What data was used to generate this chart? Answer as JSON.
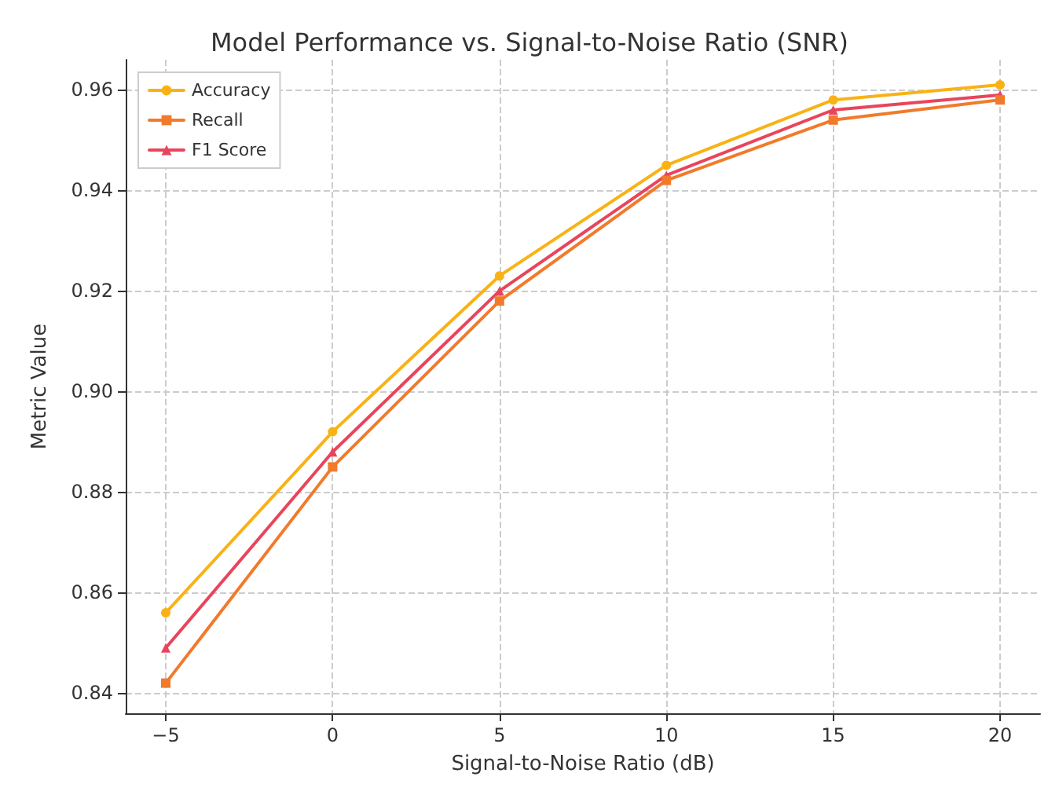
{
  "chart_data": {
    "type": "line",
    "title": "Model Performance vs. Signal-to-Noise Ratio (SNR)",
    "xlabel": "Signal-to-Noise Ratio (dB)",
    "ylabel": "Metric Value",
    "x": [
      -5,
      0,
      5,
      10,
      15,
      20
    ],
    "xlim": [
      -6.2,
      21.2
    ],
    "xticks": [
      {
        "value": -5,
        "label": "−5"
      },
      0,
      5,
      10,
      15,
      20
    ],
    "ylim": [
      0.836,
      0.966
    ],
    "yticks": [
      {
        "value": 0.84,
        "label": "0.84"
      },
      {
        "value": 0.86,
        "label": "0.86"
      },
      {
        "value": 0.88,
        "label": "0.88"
      },
      {
        "value": 0.9,
        "label": "0.90"
      },
      {
        "value": 0.92,
        "label": "0.92"
      },
      {
        "value": 0.94,
        "label": "0.94"
      },
      {
        "value": 0.96,
        "label": "0.96"
      }
    ],
    "series": [
      {
        "name": "Accuracy",
        "color": "#f9b215",
        "marker": "circle",
        "values": [
          0.856,
          0.892,
          0.923,
          0.945,
          0.958,
          0.961
        ]
      },
      {
        "name": "Recall",
        "color": "#f17a2b",
        "marker": "square",
        "values": [
          0.842,
          0.885,
          0.918,
          0.942,
          0.954,
          0.958
        ]
      },
      {
        "name": "F1 Score",
        "color": "#e8455c",
        "marker": "triangle",
        "values": [
          0.849,
          0.888,
          0.92,
          0.943,
          0.956,
          0.959
        ]
      }
    ],
    "grid": true,
    "legend": "top left",
    "line_style": "solid"
  }
}
